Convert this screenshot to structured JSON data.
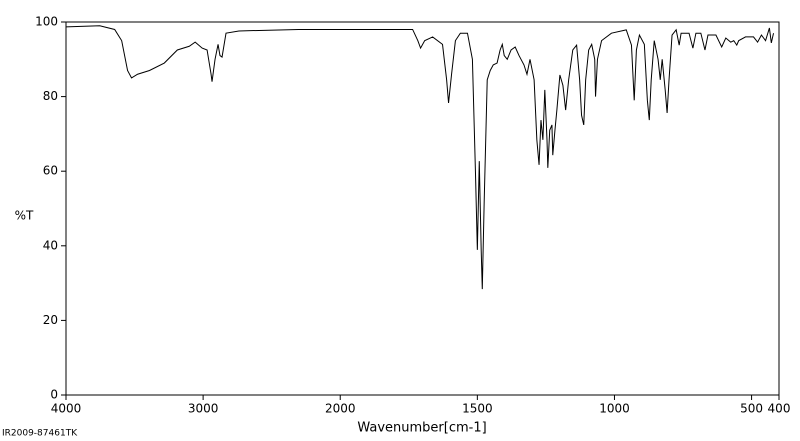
{
  "chart_data": {
    "type": "line",
    "x_label": "Wavenumber[cm-1]",
    "y_label": "%T",
    "footer": "IR2009-87461TK",
    "color": "#000000",
    "xlim": [
      4000,
      400
    ],
    "x_scale_break": 2000,
    "x_scale_expansion": 2,
    "xticks": [
      4000,
      3000,
      2000,
      1500,
      1000,
      500,
      400
    ],
    "ylim": [
      0,
      100
    ],
    "yticks": [
      0,
      20,
      40,
      60,
      80,
      100
    ],
    "x": [
      4000,
      3754,
      3645,
      3594,
      3551,
      3522,
      3478,
      3391,
      3283,
      3188,
      3101,
      3058,
      3007,
      2971,
      2942,
      2935,
      2913,
      2891,
      2877,
      2862,
      2833,
      2739,
      2304,
      2014,
      1790,
      1736,
      1717,
      1707,
      1692,
      1663,
      1627,
      1612,
      1605,
      1594,
      1580,
      1562,
      1536,
      1518,
      1507,
      1500,
      1493,
      1486,
      1482,
      1475,
      1464,
      1453,
      1442,
      1428,
      1417,
      1409,
      1402,
      1391,
      1377,
      1362,
      1348,
      1330,
      1319,
      1308,
      1293,
      1283,
      1275,
      1268,
      1261,
      1254,
      1246,
      1243,
      1236,
      1228,
      1225,
      1217,
      1210,
      1199,
      1188,
      1178,
      1167,
      1152,
      1138,
      1127,
      1120,
      1112,
      1105,
      1094,
      1083,
      1072,
      1069,
      1062,
      1047,
      1011,
      957,
      938,
      928,
      920,
      909,
      891,
      880,
      873,
      866,
      855,
      841,
      833,
      826,
      815,
      808,
      801,
      790,
      775,
      764,
      757,
      728,
      714,
      703,
      685,
      670,
      659,
      630,
      609,
      594,
      576,
      565,
      554,
      547,
      522,
      493,
      478,
      464,
      449,
      435,
      428,
      420
    ],
    "values": [
      98.7,
      99,
      98,
      95,
      87,
      85,
      86,
      87,
      89,
      92.5,
      93.5,
      94.6,
      93,
      92.5,
      86,
      84,
      90,
      94,
      91,
      90.6,
      97,
      97.6,
      98,
      98,
      98,
      98,
      95,
      93,
      95,
      96,
      94,
      84.5,
      78.3,
      86,
      95,
      97,
      97,
      90,
      60,
      38.9,
      62.7,
      38.9,
      28.4,
      52,
      84.5,
      87,
      88.5,
      89,
      92.5,
      94,
      91,
      90,
      92.5,
      93.3,
      91,
      88.5,
      86,
      90,
      84.5,
      68.4,
      61.7,
      73.7,
      68.4,
      81.8,
      68.4,
      60.9,
      71,
      72.4,
      64.3,
      71,
      76.4,
      85.8,
      83,
      76.4,
      84.5,
      92.5,
      93.8,
      84.5,
      75,
      72.4,
      84.5,
      92.5,
      94,
      90,
      80,
      90,
      95,
      97,
      97.9,
      93.8,
      79,
      92.5,
      96.5,
      94,
      79,
      73.7,
      84.5,
      95,
      90,
      84.5,
      90,
      81.8,
      75.6,
      84.5,
      96.5,
      97.9,
      93.8,
      97,
      97,
      93,
      97,
      97,
      92.5,
      96.5,
      96.5,
      93.3,
      95.7,
      94.6,
      95,
      93.8,
      95,
      96,
      96,
      94.6,
      96.5,
      95,
      98.4,
      94.4,
      97
    ]
  }
}
